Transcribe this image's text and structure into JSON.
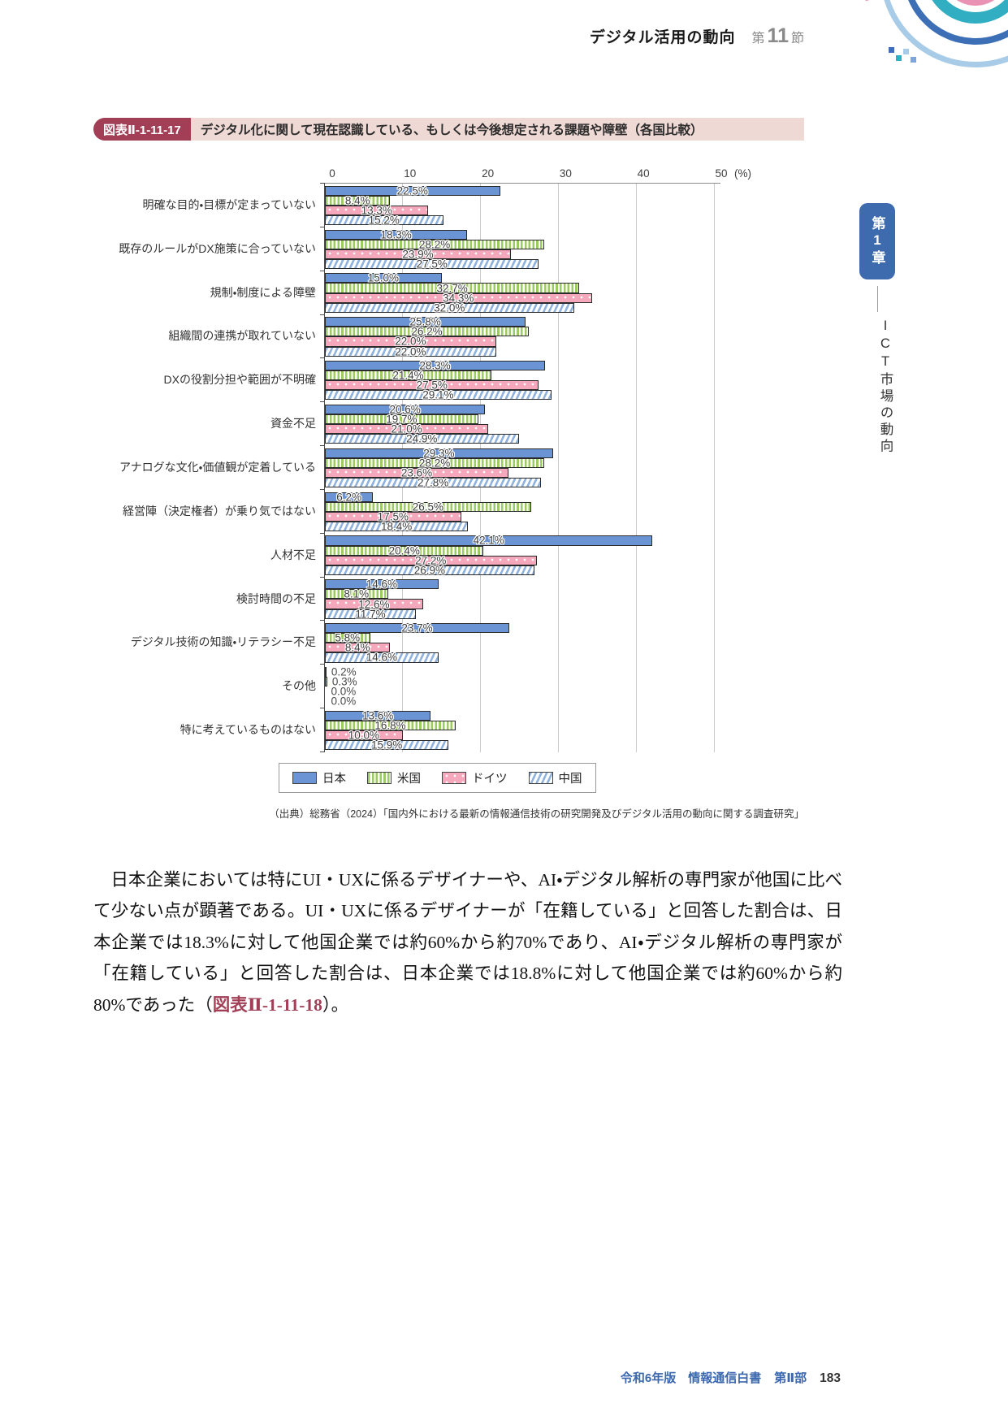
{
  "header": {
    "section_title": "デジタル活用の動向",
    "section_prefix": "第",
    "section_number": "11",
    "section_suffix": "節"
  },
  "sidebar": {
    "chapter_label": "第1章",
    "chapter_title": "ICT市場の動向"
  },
  "figure": {
    "badge": "図表Ⅱ-1-11-17",
    "title": "デジタル化に関して現在認識している、もしくは今後想定される課題や障壁（各国比較）",
    "source": "（出典）総務省（2024）「国内外における最新の情報通信技術の研究開発及びデジタル活用の動向に関する調査研究」"
  },
  "chart_data": {
    "type": "bar",
    "orientation": "horizontal",
    "unit": "%",
    "xlim": [
      0,
      50
    ],
    "ticks": [
      0,
      10,
      20,
      30,
      40,
      50
    ],
    "axis_unit_label": "(%)",
    "grid": true,
    "legend_position": "bottom",
    "categories": [
      "明確な目的・目標が定まっていない",
      "既存のルールがDX施策に合っていない",
      "規制・制度による障壁",
      "組織間の連携が取れていない",
      "DXの役割分担や範囲が不明確",
      "資金不足",
      "アナログな文化・価値観が定着している",
      "経営陣（決定権者）が乗り気ではない",
      "人材不足",
      "検討時間の不足",
      "デジタル技術の知識・リテラシー不足",
      "その他",
      "特に考えているものはない"
    ],
    "series": [
      {
        "name": "日本",
        "key": "japan",
        "pattern": "solid",
        "color": "#6B94D4",
        "values": [
          22.5,
          18.3,
          15.0,
          25.8,
          28.3,
          20.6,
          29.3,
          6.2,
          42.1,
          14.6,
          23.7,
          0.2,
          13.6
        ]
      },
      {
        "name": "米国",
        "key": "usa",
        "pattern": "vstripe",
        "color": "#9DCB63",
        "values": [
          8.4,
          28.2,
          32.7,
          26.2,
          21.4,
          19.7,
          28.2,
          26.5,
          20.4,
          8.1,
          5.8,
          0.3,
          16.8
        ]
      },
      {
        "name": "ドイツ",
        "key": "germany",
        "pattern": "dots",
        "color": "#F5A8BC",
        "values": [
          13.3,
          23.9,
          34.3,
          22.0,
          27.5,
          21.0,
          23.6,
          17.5,
          27.2,
          12.6,
          8.4,
          0.0,
          10.0
        ]
      },
      {
        "name": "中国",
        "key": "china",
        "pattern": "diag",
        "color": "#8FB2DF",
        "values": [
          15.2,
          27.5,
          32.0,
          22.0,
          29.1,
          24.9,
          27.8,
          18.4,
          26.9,
          11.7,
          14.6,
          0.0,
          15.9
        ]
      }
    ]
  },
  "body": {
    "para_before_ref": "日本企業においては特にUI・UXに係るデザイナーや、AI・デジタル解析の専門家が他国に比べて少ない点が顕著である。UI・UXに係るデザイナーが「在籍している」と回答した割合は、日本企業では18.3%に対して他国企業では約60%から約70%であり、AI・デジタル解析の専門家が「在籍している」と回答した割合は、日本企業では18.8%に対して他国企業では約60%から約80%であった（",
    "ref": "図表Ⅱ-1-11-18",
    "para_after_ref": "）。"
  },
  "footer": {
    "book": "令和6年版　情報通信白書",
    "part": "第Ⅱ部",
    "page_number": "183"
  },
  "colors": {
    "accent_maroon": "#A23F57",
    "figure_title_bg": "#EFD9D4",
    "sidebar_blue": "#3D6BAE",
    "footer_blue": "#3A67AD",
    "gridline": "#CBCBCB"
  }
}
